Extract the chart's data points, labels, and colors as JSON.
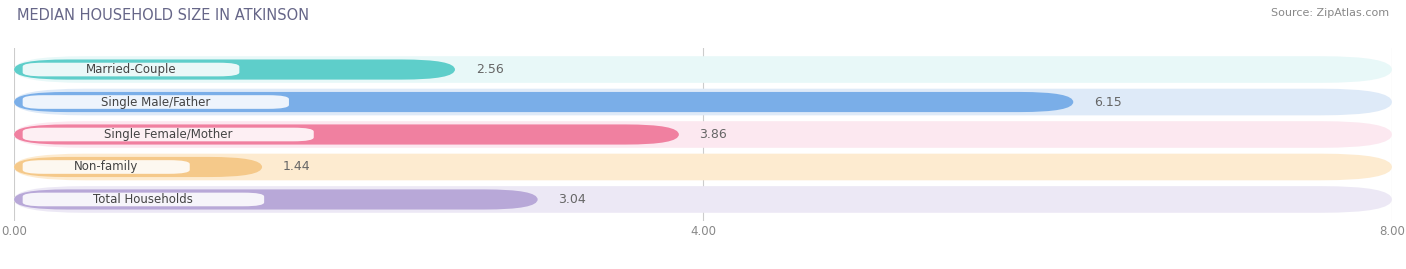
{
  "title": "MEDIAN HOUSEHOLD SIZE IN ATKINSON",
  "source": "Source: ZipAtlas.com",
  "categories": [
    "Married-Couple",
    "Single Male/Father",
    "Single Female/Mother",
    "Non-family",
    "Total Households"
  ],
  "values": [
    2.56,
    6.15,
    3.86,
    1.44,
    3.04
  ],
  "bar_colors": [
    "#5ececa",
    "#7aaee8",
    "#f080a0",
    "#f5c98a",
    "#b8a8d8"
  ],
  "bar_bg_colors": [
    "#e8f8f8",
    "#deeaf8",
    "#fce8f0",
    "#fdebd0",
    "#ece8f5"
  ],
  "xlim": [
    0,
    8.0
  ],
  "xticks": [
    0.0,
    4.0,
    8.0
  ],
  "xtick_labels": [
    "0.00",
    "4.00",
    "8.00"
  ],
  "title_fontsize": 10.5,
  "source_fontsize": 8,
  "label_fontsize": 8.5,
  "value_fontsize": 9,
  "background_color": "#ffffff",
  "value_inside_threshold": 0.77
}
